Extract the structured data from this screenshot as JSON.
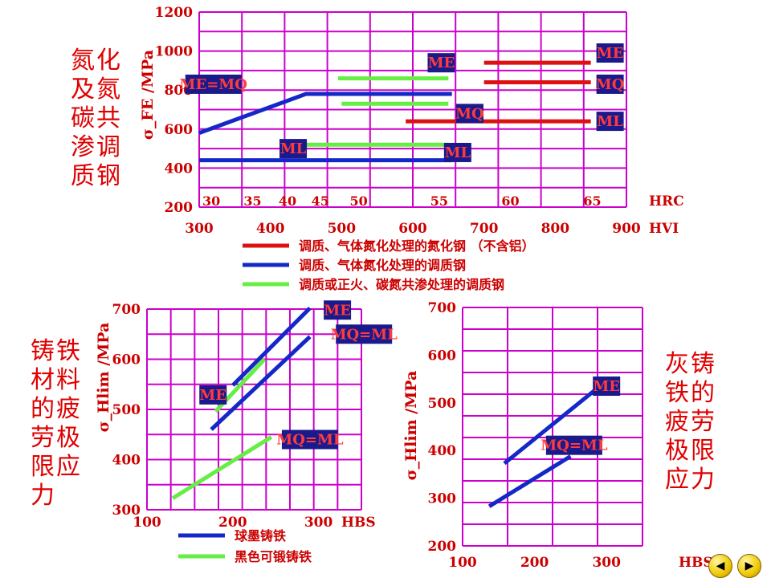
{
  "colors": {
    "grid": "#cc00cc",
    "axis_text": "#cc0000",
    "red": "#dd1111",
    "blue": "#1428c8",
    "green": "#66ee44",
    "tag_bg": "#1a1a8c",
    "tag_text": "#ff3b3b",
    "title": "#e00000"
  },
  "titles": {
    "top": "氮化\n及氮\n碳共\n渗调\n质钢",
    "bottom_left": "铸铁\n材料\n的疲\n劳极\n限应\n力",
    "bottom_right": "灰铸\n铁的\n疲劳\n极限\n应力"
  },
  "nav": {
    "prev_icon": "left-triangle-icon",
    "next_icon": "right-triangle-icon"
  },
  "chart_data": [
    {
      "type": "line",
      "id": "top",
      "ylabel": "σ_FE /MPa",
      "ylim": [
        200,
        1200
      ],
      "yticks": [
        200,
        400,
        600,
        800,
        1000,
        1200
      ],
      "xlim": [
        300,
        900
      ],
      "xticks": [
        300,
        400,
        500,
        600,
        700,
        800,
        900
      ],
      "xunit": "HVI",
      "hrc_unit": "HRC",
      "hrc_ticks": [
        {
          "label": "30",
          "x": 300
        },
        {
          "label": "35",
          "x": 358
        },
        {
          "label": "40",
          "x": 407
        },
        {
          "label": "45",
          "x": 453
        },
        {
          "label": "50",
          "x": 507
        },
        {
          "label": "55",
          "x": 620
        },
        {
          "label": "60",
          "x": 720
        },
        {
          "label": "65",
          "x": 835
        }
      ],
      "series": [
        {
          "name": "调质、气体氮化处理的氮化钢 （不含铝）",
          "color": "red",
          "lines": [
            {
              "x": [
                700,
                850
              ],
              "y": [
                940,
                940
              ]
            },
            {
              "x": [
                700,
                850
              ],
              "y": [
                840,
                840
              ]
            },
            {
              "x": [
                590,
                850
              ],
              "y": [
                640,
                640
              ]
            }
          ]
        },
        {
          "name": "调质、气体氮化处理的调质钢",
          "color": "blue",
          "lines": [
            {
              "x": [
                300,
                450,
                655
              ],
              "y": [
                580,
                780,
                780
              ]
            },
            {
              "x": [
                300,
                655
              ],
              "y": [
                440,
                440
              ]
            }
          ]
        },
        {
          "name": "调质或正火、碳氮共渗处理的调质钢",
          "color": "green",
          "lines": [
            {
              "x": [
                495,
                650
              ],
              "y": [
                860,
                860
              ]
            },
            {
              "x": [
                500,
                650
              ],
              "y": [
                730,
                730
              ]
            },
            {
              "x": [
                450,
                650
              ],
              "y": [
                520,
                520
              ]
            }
          ]
        }
      ],
      "tags": [
        {
          "text": "ME=MQ",
          "x": 320,
          "y": 830
        },
        {
          "text": "ME",
          "x": 640,
          "y": 940
        },
        {
          "text": "ME",
          "x": 877,
          "y": 990
        },
        {
          "text": "MQ",
          "x": 877,
          "y": 830
        },
        {
          "text": "MQ",
          "x": 680,
          "y": 680
        },
        {
          "text": "ML",
          "x": 877,
          "y": 640
        },
        {
          "text": "ML",
          "x": 663,
          "y": 480
        },
        {
          "text": "ML",
          "x": 432,
          "y": 500
        }
      ]
    },
    {
      "type": "line",
      "id": "bottom_left",
      "ylabel": "σ_Hlim /MPa",
      "ylim": [
        300,
        700
      ],
      "yticks": [
        300,
        400,
        500,
        600,
        700
      ],
      "xlim": [
        100,
        350
      ],
      "xticks": [
        100,
        200,
        300
      ],
      "xunit": "HBS",
      "series": [
        {
          "name": "球墨铸铁",
          "color": "blue",
          "lines": [
            {
              "x": [
                200,
                290
              ],
              "y": [
                548,
                702
              ]
            },
            {
              "x": [
                175,
                290
              ],
              "y": [
                460,
                645
              ]
            }
          ]
        },
        {
          "name": "黑色可锻铸铁",
          "color": "green",
          "lines": [
            {
              "x": [
                180,
                237
              ],
              "y": [
                496,
                600
              ]
            },
            {
              "x": [
                130,
                245
              ],
              "y": [
                323,
                445
              ]
            }
          ]
        }
      ],
      "tags": [
        {
          "text": "ME",
          "x": 322,
          "y": 698
        },
        {
          "text": "MQ=ML",
          "x": 353,
          "y": 650
        },
        {
          "text": "ME",
          "x": 177,
          "y": 529
        },
        {
          "text": "MQ=ML",
          "x": 290,
          "y": 440
        }
      ]
    },
    {
      "type": "line",
      "id": "bottom_right",
      "ylabel": "σ_Hlim /MPa",
      "ylim": [
        200,
        700
      ],
      "yticks": [
        200,
        300,
        400,
        500,
        600,
        700
      ],
      "xlim": [
        100,
        350
      ],
      "xticks": [
        100,
        200,
        300
      ],
      "xunit": "HBS",
      "series": [
        {
          "name": "",
          "color": "blue",
          "lines": [
            {
              "x": [
                158,
                290
              ],
              "y": [
                373,
                534
              ]
            },
            {
              "x": [
                137,
                250
              ],
              "y": [
                283,
                388
              ]
            }
          ]
        }
      ],
      "tags": [
        {
          "text": "ME",
          "x": 300,
          "y": 535
        },
        {
          "text": "MQ=ML",
          "x": 255,
          "y": 411
        }
      ]
    }
  ]
}
